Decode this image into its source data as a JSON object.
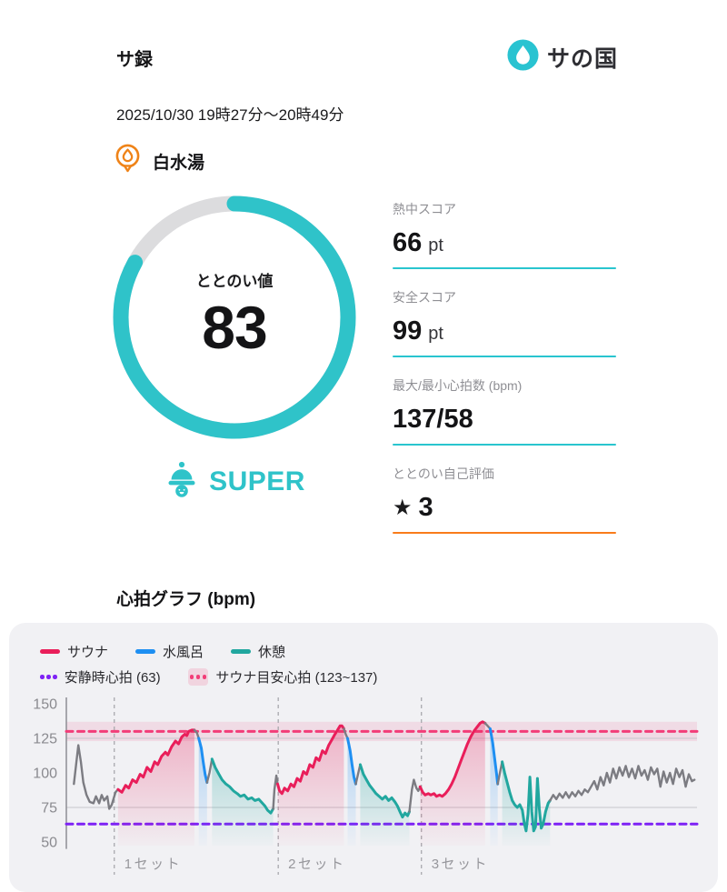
{
  "header": {
    "title": "サ録",
    "logo_text": "サの国",
    "datetime": "2025/10/30 19時27分〜20時49分",
    "location": "白水湯"
  },
  "gauge": {
    "label": "ととのい値",
    "value": "83",
    "value_num": 83,
    "max": 100,
    "rating": "SUPER",
    "ring_color": "#2fc3c9",
    "track_color": "#dcdcde"
  },
  "stats": {
    "items": [
      {
        "label": "熱中スコア",
        "value": "66",
        "suffix": "pt",
        "underline_color": "#29c5cf"
      },
      {
        "label": "安全スコア",
        "value": "99",
        "suffix": "pt",
        "underline_color": "#29c5cf"
      },
      {
        "label": "最大/最小心拍数 (bpm)",
        "value": "137/58",
        "suffix": "",
        "underline_color": "#29c5cf"
      },
      {
        "label": "ととのい自己評価",
        "star": "★",
        "value": "3",
        "suffix": "",
        "underline_color": "#f97c1b"
      }
    ]
  },
  "chart_data": {
    "type": "line",
    "title": "心拍グラフ (bpm)",
    "ylabel": "bpm",
    "ylim": [
      45,
      155
    ],
    "yticks": [
      50,
      75,
      100,
      125,
      150
    ],
    "grid_y": [
      75,
      125
    ],
    "legend_position": "top-left",
    "colors": {
      "sauna": "#e91e5a",
      "cold": "#1e8ff2",
      "rest": "#21a79f",
      "other": "#7c7c82"
    },
    "legend": [
      {
        "label": "サウナ",
        "color": "#e91e5a",
        "style": "solid"
      },
      {
        "label": "水風呂",
        "color": "#1e8ff2",
        "style": "solid"
      },
      {
        "label": "休憩",
        "color": "#21a79f",
        "style": "solid"
      },
      {
        "label": "安静時心拍 (63)",
        "color": "#7e22f5",
        "style": "dotted"
      },
      {
        "label": "サウナ目安心拍 (123~137)",
        "color": "#f23d78",
        "style": "dotted-band"
      }
    ],
    "reference_lines": [
      {
        "label": "安静時心拍 (63)",
        "value": 63,
        "color": "#7e22f5",
        "style": "dashed"
      },
      {
        "label": "サウナ目安心拍 (123~137)",
        "value": 130,
        "band": [
          123,
          137
        ],
        "band_color": "rgba(233,30,99,0.10)",
        "color": "#f23d78",
        "style": "dashed"
      }
    ],
    "set_markers": [
      {
        "label": "1セット",
        "x": 0.076
      },
      {
        "label": "2セット",
        "x": 0.336
      },
      {
        "label": "3セット",
        "x": 0.563
      }
    ],
    "segments": [
      {
        "phase": "other",
        "points": [
          [
            0.012,
            92
          ],
          [
            0.016,
            108
          ],
          [
            0.019,
            120
          ],
          [
            0.023,
            108
          ],
          [
            0.027,
            93
          ],
          [
            0.032,
            84
          ],
          [
            0.037,
            79
          ],
          [
            0.043,
            78
          ],
          [
            0.047,
            83
          ],
          [
            0.052,
            78
          ],
          [
            0.056,
            84
          ],
          [
            0.06,
            80
          ],
          [
            0.065,
            83
          ],
          [
            0.068,
            74
          ],
          [
            0.072,
            77
          ],
          [
            0.078,
            86
          ],
          [
            0.082,
            88
          ]
        ]
      },
      {
        "phase": "sauna",
        "points": [
          [
            0.082,
            88
          ],
          [
            0.088,
            86
          ],
          [
            0.094,
            91
          ],
          [
            0.099,
            89
          ],
          [
            0.105,
            95
          ],
          [
            0.111,
            93
          ],
          [
            0.117,
            99
          ],
          [
            0.122,
            97
          ],
          [
            0.128,
            104
          ],
          [
            0.134,
            101
          ],
          [
            0.14,
            108
          ],
          [
            0.145,
            106
          ],
          [
            0.151,
            112
          ],
          [
            0.157,
            115
          ],
          [
            0.161,
            113
          ],
          [
            0.167,
            119
          ],
          [
            0.173,
            123
          ],
          [
            0.178,
            121
          ],
          [
            0.183,
            126
          ],
          [
            0.188,
            128
          ],
          [
            0.191,
            127
          ],
          [
            0.194,
            130
          ],
          [
            0.199,
            131
          ],
          [
            0.203,
            131
          ]
        ]
      },
      {
        "phase": "other",
        "points": [
          [
            0.203,
            131
          ],
          [
            0.207,
            129
          ],
          [
            0.21,
            125
          ]
        ]
      },
      {
        "phase": "cold",
        "points": [
          [
            0.21,
            125
          ],
          [
            0.214,
            118
          ],
          [
            0.217,
            108
          ],
          [
            0.22,
            99
          ],
          [
            0.223,
            93
          ]
        ]
      },
      {
        "phase": "other",
        "points": [
          [
            0.223,
            93
          ],
          [
            0.227,
            100
          ],
          [
            0.231,
            110
          ]
        ]
      },
      {
        "phase": "rest",
        "points": [
          [
            0.231,
            110
          ],
          [
            0.236,
            104
          ],
          [
            0.242,
            99
          ],
          [
            0.247,
            95
          ],
          [
            0.253,
            92
          ],
          [
            0.259,
            90
          ],
          [
            0.265,
            87
          ],
          [
            0.271,
            85
          ],
          [
            0.276,
            83
          ],
          [
            0.282,
            84
          ],
          [
            0.288,
            81
          ],
          [
            0.294,
            82
          ],
          [
            0.299,
            80
          ],
          [
            0.305,
            81
          ],
          [
            0.311,
            78
          ],
          [
            0.315,
            76
          ],
          [
            0.319,
            73
          ],
          [
            0.324,
            71
          ],
          [
            0.328,
            74
          ]
        ]
      },
      {
        "phase": "other",
        "points": [
          [
            0.328,
            74
          ],
          [
            0.33,
            88
          ],
          [
            0.333,
            98
          ],
          [
            0.335,
            92
          ]
        ]
      },
      {
        "phase": "sauna",
        "points": [
          [
            0.335,
            92
          ],
          [
            0.338,
            87
          ],
          [
            0.342,
            85
          ],
          [
            0.346,
            89
          ],
          [
            0.351,
            87
          ],
          [
            0.356,
            92
          ],
          [
            0.361,
            90
          ],
          [
            0.366,
            96
          ],
          [
            0.371,
            94
          ],
          [
            0.376,
            101
          ],
          [
            0.381,
            99
          ],
          [
            0.386,
            106
          ],
          [
            0.391,
            104
          ],
          [
            0.396,
            111
          ],
          [
            0.401,
            109
          ],
          [
            0.406,
            116
          ],
          [
            0.411,
            114
          ],
          [
            0.416,
            120
          ],
          [
            0.421,
            124
          ],
          [
            0.426,
            128
          ],
          [
            0.43,
            131
          ],
          [
            0.434,
            134
          ],
          [
            0.437,
            134
          ],
          [
            0.44,
            132
          ]
        ]
      },
      {
        "phase": "other",
        "points": [
          [
            0.44,
            132
          ],
          [
            0.443,
            128
          ],
          [
            0.446,
            125
          ]
        ]
      },
      {
        "phase": "cold",
        "points": [
          [
            0.446,
            125
          ],
          [
            0.45,
            116
          ],
          [
            0.453,
            106
          ],
          [
            0.456,
            97
          ],
          [
            0.459,
            92
          ]
        ]
      },
      {
        "phase": "other",
        "points": [
          [
            0.459,
            92
          ],
          [
            0.462,
            98
          ],
          [
            0.466,
            106
          ]
        ]
      },
      {
        "phase": "rest",
        "points": [
          [
            0.466,
            106
          ],
          [
            0.471,
            99
          ],
          [
            0.476,
            95
          ],
          [
            0.481,
            91
          ],
          [
            0.486,
            88
          ],
          [
            0.491,
            85
          ],
          [
            0.496,
            83
          ],
          [
            0.501,
            81
          ],
          [
            0.506,
            83
          ],
          [
            0.511,
            80
          ],
          [
            0.516,
            82
          ],
          [
            0.521,
            79
          ],
          [
            0.525,
            76
          ],
          [
            0.529,
            72
          ],
          [
            0.533,
            68
          ],
          [
            0.537,
            71
          ],
          [
            0.541,
            69
          ],
          [
            0.544,
            72
          ]
        ]
      },
      {
        "phase": "other",
        "points": [
          [
            0.544,
            72
          ],
          [
            0.548,
            88
          ],
          [
            0.551,
            95
          ],
          [
            0.555,
            89
          ],
          [
            0.558,
            87
          ],
          [
            0.561,
            90
          ]
        ]
      },
      {
        "phase": "sauna",
        "points": [
          [
            0.561,
            90
          ],
          [
            0.565,
            86
          ],
          [
            0.569,
            84
          ],
          [
            0.574,
            85
          ],
          [
            0.578,
            84
          ],
          [
            0.583,
            85
          ],
          [
            0.587,
            83
          ],
          [
            0.592,
            84
          ],
          [
            0.596,
            83
          ],
          [
            0.601,
            85
          ],
          [
            0.606,
            88
          ],
          [
            0.611,
            92
          ],
          [
            0.616,
            97
          ],
          [
            0.621,
            103
          ],
          [
            0.626,
            109
          ],
          [
            0.631,
            115
          ],
          [
            0.636,
            121
          ],
          [
            0.641,
            126
          ],
          [
            0.646,
            130
          ],
          [
            0.651,
            133
          ],
          [
            0.656,
            136
          ],
          [
            0.66,
            137
          ],
          [
            0.664,
            136
          ]
        ]
      },
      {
        "phase": "other",
        "points": [
          [
            0.664,
            136
          ],
          [
            0.668,
            134
          ],
          [
            0.672,
            132
          ]
        ]
      },
      {
        "phase": "cold",
        "points": [
          [
            0.672,
            132
          ],
          [
            0.676,
            122
          ],
          [
            0.679,
            111
          ],
          [
            0.682,
            100
          ],
          [
            0.684,
            92
          ]
        ]
      },
      {
        "phase": "other",
        "points": [
          [
            0.684,
            92
          ],
          [
            0.687,
            99
          ],
          [
            0.691,
            108
          ]
        ]
      },
      {
        "phase": "rest",
        "points": [
          [
            0.691,
            108
          ],
          [
            0.695,
            100
          ],
          [
            0.699,
            93
          ],
          [
            0.703,
            86
          ],
          [
            0.707,
            80
          ],
          [
            0.711,
            77
          ],
          [
            0.715,
            75
          ],
          [
            0.719,
            77
          ],
          [
            0.723,
            73
          ],
          [
            0.726,
            64
          ],
          [
            0.729,
            58
          ],
          [
            0.732,
            70
          ],
          [
            0.735,
            97
          ],
          [
            0.738,
            72
          ],
          [
            0.741,
            58
          ],
          [
            0.744,
            61
          ],
          [
            0.747,
            96
          ],
          [
            0.75,
            74
          ],
          [
            0.753,
            60
          ],
          [
            0.756,
            63
          ],
          [
            0.76,
            72
          ],
          [
            0.764,
            78
          ],
          [
            0.767,
            80
          ]
        ]
      },
      {
        "phase": "other",
        "points": [
          [
            0.767,
            80
          ],
          [
            0.772,
            84
          ],
          [
            0.777,
            81
          ],
          [
            0.782,
            85
          ],
          [
            0.787,
            82
          ],
          [
            0.792,
            86
          ],
          [
            0.797,
            82
          ],
          [
            0.802,
            86
          ],
          [
            0.807,
            83
          ],
          [
            0.812,
            87
          ],
          [
            0.817,
            84
          ],
          [
            0.822,
            88
          ],
          [
            0.827,
            86
          ],
          [
            0.832,
            90
          ],
          [
            0.837,
            94
          ],
          [
            0.842,
            88
          ],
          [
            0.847,
            97
          ],
          [
            0.852,
            91
          ],
          [
            0.857,
            100
          ],
          [
            0.862,
            93
          ],
          [
            0.867,
            103
          ],
          [
            0.872,
            96
          ],
          [
            0.877,
            104
          ],
          [
            0.882,
            98
          ],
          [
            0.887,
            105
          ],
          [
            0.892,
            97
          ],
          [
            0.897,
            103
          ],
          [
            0.902,
            96
          ],
          [
            0.907,
            105
          ],
          [
            0.912,
            98
          ],
          [
            0.917,
            102
          ],
          [
            0.922,
            95
          ],
          [
            0.927,
            104
          ],
          [
            0.932,
            99
          ],
          [
            0.937,
            103
          ],
          [
            0.942,
            90
          ],
          [
            0.947,
            101
          ],
          [
            0.952,
            93
          ],
          [
            0.957,
            100
          ],
          [
            0.962,
            92
          ],
          [
            0.967,
            103
          ],
          [
            0.972,
            97
          ],
          [
            0.977,
            102
          ],
          [
            0.982,
            90
          ],
          [
            0.987,
            99
          ],
          [
            0.992,
            94
          ],
          [
            0.996,
            95
          ]
        ]
      }
    ]
  }
}
